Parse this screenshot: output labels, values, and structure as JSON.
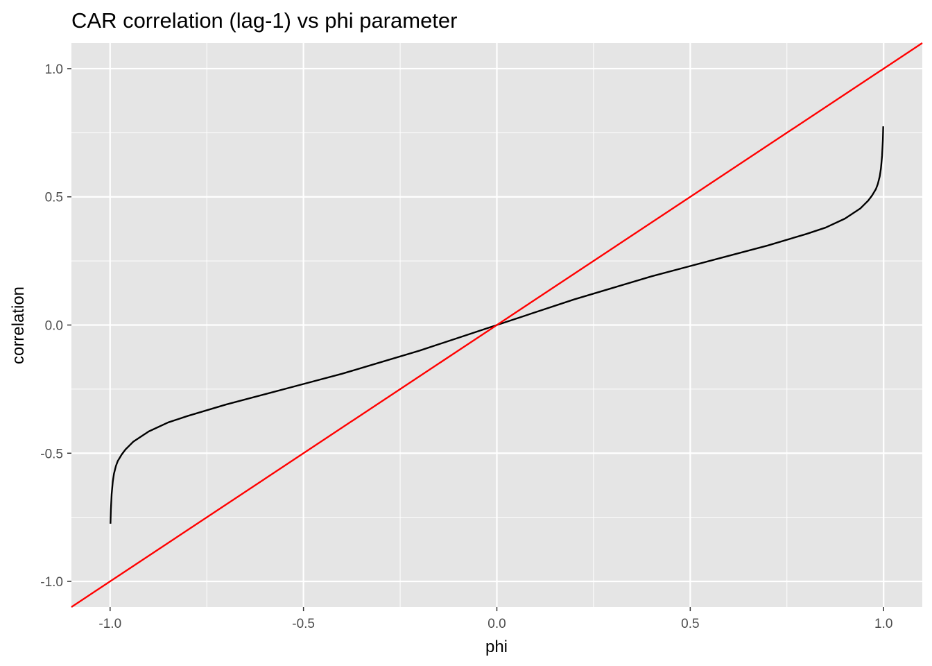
{
  "chart_data": {
    "type": "line",
    "title": "CAR correlation (lag-1) vs phi parameter",
    "xlabel": "phi",
    "ylabel": "correlation",
    "xlim": [
      -1.1,
      1.1
    ],
    "ylim": [
      -1.1,
      1.1
    ],
    "x_ticks": [
      "-1.0",
      "-0.5",
      "0.0",
      "0.5",
      "1.0"
    ],
    "y_ticks": [
      "-1.0",
      "-0.5",
      "0.0",
      "0.5",
      "1.0"
    ],
    "grid": true,
    "background": "#e5e5e5",
    "series": [
      {
        "color": "#000000",
        "x": [
          -0.999,
          -0.998,
          -0.996,
          -0.993,
          -0.99,
          -0.985,
          -0.98,
          -0.97,
          -0.96,
          -0.95,
          -0.94,
          -0.92,
          -0.9,
          -0.85,
          -0.8,
          -0.7,
          -0.6,
          -0.5,
          -0.4,
          -0.3,
          -0.2,
          -0.1,
          0.0,
          0.1,
          0.2,
          0.3,
          0.4,
          0.5,
          0.6,
          0.7,
          0.8,
          0.85,
          0.9,
          0.92,
          0.94,
          0.95,
          0.96,
          0.97,
          0.98,
          0.985,
          0.99,
          0.993,
          0.996,
          0.998,
          0.999
        ],
        "y": [
          -0.775,
          -0.72,
          -0.66,
          -0.61,
          -0.58,
          -0.55,
          -0.53,
          -0.505,
          -0.485,
          -0.47,
          -0.455,
          -0.435,
          -0.415,
          -0.38,
          -0.355,
          -0.31,
          -0.27,
          -0.23,
          -0.19,
          -0.145,
          -0.1,
          -0.05,
          0.0,
          0.05,
          0.1,
          0.145,
          0.19,
          0.23,
          0.27,
          0.31,
          0.355,
          0.38,
          0.415,
          0.435,
          0.455,
          0.47,
          0.485,
          0.505,
          0.53,
          0.55,
          0.58,
          0.61,
          0.66,
          0.72,
          0.775
        ]
      },
      {
        "color": "#ff0000",
        "x": [
          -1.1,
          1.1
        ],
        "y": [
          -1.1,
          1.1
        ]
      }
    ]
  }
}
